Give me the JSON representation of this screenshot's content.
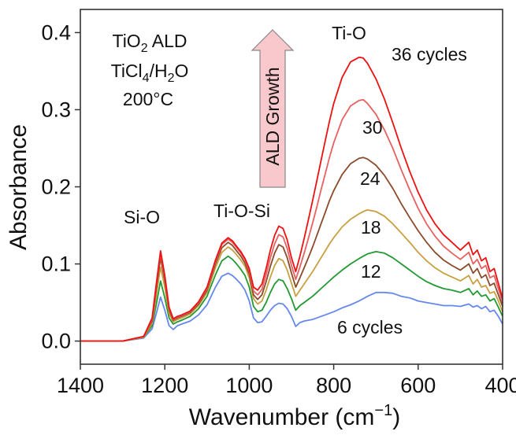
{
  "chart_data": {
    "type": "line",
    "xlabel": "Wavenumber (cm",
    "xlabel_sup": "−1",
    "xlabel_end": ")",
    "ylabel": "Absorbance",
    "xlim": [
      1400,
      400
    ],
    "ylim": [
      -0.03,
      0.43
    ],
    "x_ticks": [
      1400,
      1200,
      1000,
      800,
      600,
      400
    ],
    "x_tick_labels": [
      "1400",
      "1200",
      "1000",
      "800",
      "600",
      "400"
    ],
    "y_ticks": [
      0.0,
      0.1,
      0.2,
      0.3,
      0.4
    ],
    "y_tick_labels": [
      "0.0",
      "0.1",
      "0.2",
      "0.3",
      "0.4"
    ],
    "grid": false,
    "x": [
      1400,
      1300,
      1250,
      1230,
      1220,
      1210,
      1200,
      1190,
      1180,
      1170,
      1160,
      1140,
      1120,
      1100,
      1080,
      1065,
      1050,
      1040,
      1030,
      1020,
      1010,
      1000,
      990,
      980,
      970,
      960,
      950,
      940,
      930,
      920,
      910,
      900,
      890,
      880,
      870,
      860,
      850,
      840,
      830,
      820,
      810,
      800,
      780,
      760,
      740,
      730,
      720,
      700,
      680,
      660,
      640,
      620,
      600,
      580,
      560,
      540,
      520,
      500,
      480,
      470,
      460,
      450,
      440,
      430,
      420,
      410,
      400
    ],
    "series": [
      {
        "name": "6 cycles",
        "color": "#6688ee",
        "values": [
          0.0,
          0.0,
          0.004,
          0.016,
          0.036,
          0.057,
          0.04,
          0.02,
          0.015,
          0.02,
          0.022,
          0.026,
          0.034,
          0.047,
          0.07,
          0.084,
          0.088,
          0.085,
          0.08,
          0.074,
          0.066,
          0.052,
          0.03,
          0.024,
          0.025,
          0.032,
          0.04,
          0.046,
          0.049,
          0.048,
          0.042,
          0.032,
          0.019,
          0.024,
          0.026,
          0.027,
          0.028,
          0.03,
          0.032,
          0.034,
          0.036,
          0.038,
          0.043,
          0.047,
          0.052,
          0.055,
          0.058,
          0.063,
          0.063,
          0.062,
          0.058,
          0.056,
          0.052,
          0.05,
          0.048,
          0.046,
          0.046,
          0.045,
          0.048,
          0.044,
          0.046,
          0.042,
          0.045,
          0.038,
          0.04,
          0.032,
          0.022
        ]
      },
      {
        "name": "12",
        "color": "#229933",
        "values": [
          0.0,
          0.0,
          0.005,
          0.02,
          0.048,
          0.078,
          0.056,
          0.03,
          0.022,
          0.025,
          0.027,
          0.032,
          0.042,
          0.058,
          0.086,
          0.104,
          0.11,
          0.106,
          0.1,
          0.093,
          0.085,
          0.07,
          0.045,
          0.038,
          0.04,
          0.05,
          0.063,
          0.074,
          0.08,
          0.078,
          0.068,
          0.055,
          0.04,
          0.046,
          0.05,
          0.054,
          0.058,
          0.063,
          0.068,
          0.073,
          0.078,
          0.083,
          0.092,
          0.1,
          0.107,
          0.11,
          0.113,
          0.116,
          0.114,
          0.108,
          0.1,
          0.092,
          0.084,
          0.077,
          0.072,
          0.068,
          0.066,
          0.063,
          0.068,
          0.06,
          0.065,
          0.058,
          0.06,
          0.052,
          0.055,
          0.044,
          0.032
        ]
      },
      {
        "name": "18",
        "color": "#c8a040",
        "values": [
          0.0,
          0.0,
          0.005,
          0.023,
          0.06,
          0.096,
          0.07,
          0.036,
          0.025,
          0.028,
          0.03,
          0.035,
          0.046,
          0.063,
          0.095,
          0.115,
          0.122,
          0.118,
          0.112,
          0.105,
          0.097,
          0.082,
          0.055,
          0.048,
          0.052,
          0.066,
          0.083,
          0.098,
          0.107,
          0.104,
          0.092,
          0.075,
          0.058,
          0.066,
          0.074,
          0.082,
          0.09,
          0.099,
          0.108,
          0.117,
          0.126,
          0.134,
          0.148,
          0.158,
          0.165,
          0.168,
          0.17,
          0.168,
          0.162,
          0.152,
          0.14,
          0.128,
          0.115,
          0.104,
          0.095,
          0.088,
          0.083,
          0.078,
          0.085,
          0.074,
          0.08,
          0.07,
          0.072,
          0.062,
          0.064,
          0.052,
          0.038
        ]
      },
      {
        "name": "24",
        "color": "#8b4a2a",
        "values": [
          0.0,
          0.0,
          0.006,
          0.026,
          0.068,
          0.108,
          0.078,
          0.04,
          0.027,
          0.03,
          0.032,
          0.037,
          0.048,
          0.066,
          0.1,
          0.121,
          0.128,
          0.124,
          0.117,
          0.11,
          0.101,
          0.087,
          0.06,
          0.054,
          0.06,
          0.077,
          0.097,
          0.114,
          0.125,
          0.122,
          0.108,
          0.088,
          0.07,
          0.082,
          0.095,
          0.108,
          0.122,
          0.137,
          0.152,
          0.167,
          0.182,
          0.195,
          0.216,
          0.23,
          0.237,
          0.238,
          0.236,
          0.228,
          0.215,
          0.198,
          0.178,
          0.16,
          0.143,
          0.128,
          0.115,
          0.105,
          0.098,
          0.092,
          0.1,
          0.088,
          0.094,
          0.082,
          0.086,
          0.072,
          0.075,
          0.06,
          0.045
        ]
      },
      {
        "name": "30",
        "color": "#e86060",
        "values": [
          0.0,
          0.0,
          0.006,
          0.028,
          0.072,
          0.114,
          0.082,
          0.042,
          0.028,
          0.031,
          0.033,
          0.038,
          0.05,
          0.068,
          0.103,
          0.125,
          0.132,
          0.128,
          0.121,
          0.114,
          0.105,
          0.091,
          0.065,
          0.06,
          0.067,
          0.086,
          0.108,
          0.126,
          0.138,
          0.135,
          0.12,
          0.098,
          0.08,
          0.096,
          0.114,
          0.133,
          0.153,
          0.174,
          0.196,
          0.217,
          0.238,
          0.257,
          0.287,
          0.305,
          0.312,
          0.313,
          0.308,
          0.294,
          0.274,
          0.25,
          0.222,
          0.196,
          0.172,
          0.152,
          0.136,
          0.123,
          0.114,
          0.106,
          0.115,
          0.1,
          0.106,
          0.094,
          0.098,
          0.082,
          0.085,
          0.068,
          0.05
        ]
      },
      {
        "name": "36 cycles",
        "color": "#ee1111",
        "values": [
          0.0,
          0.0,
          0.006,
          0.03,
          0.075,
          0.117,
          0.085,
          0.044,
          0.029,
          0.032,
          0.034,
          0.039,
          0.051,
          0.07,
          0.105,
          0.127,
          0.134,
          0.13,
          0.123,
          0.116,
          0.107,
          0.094,
          0.07,
          0.066,
          0.074,
          0.094,
          0.118,
          0.137,
          0.149,
          0.146,
          0.131,
          0.108,
          0.09,
          0.11,
          0.133,
          0.157,
          0.182,
          0.208,
          0.234,
          0.26,
          0.285,
          0.308,
          0.342,
          0.362,
          0.368,
          0.367,
          0.36,
          0.34,
          0.314,
          0.283,
          0.25,
          0.22,
          0.193,
          0.17,
          0.152,
          0.138,
          0.128,
          0.118,
          0.128,
          0.112,
          0.118,
          0.104,
          0.108,
          0.09,
          0.094,
          0.075,
          0.055
        ]
      }
    ],
    "annotations": {
      "recipe_line1": "TiO",
      "recipe_line1_sub": "2",
      "recipe_line1_end": " ALD",
      "recipe_line2": "TiCl",
      "recipe_line2_sub1": "4",
      "recipe_line2_mid": "/H",
      "recipe_line2_sub2": "2",
      "recipe_line2_end": "O",
      "recipe_line3": "200°C",
      "arrow_label": "ALD Growth",
      "arrow_color": "#f8c8cc",
      "peak_sio": "Si-O",
      "peak_tiosi": "Ti-O-Si",
      "peak_tio": "Ti-O",
      "label_36": "36 cycles",
      "label_30": "30",
      "label_24": "24",
      "label_18": "18",
      "label_12": "12",
      "label_6": "6 cycles"
    }
  }
}
